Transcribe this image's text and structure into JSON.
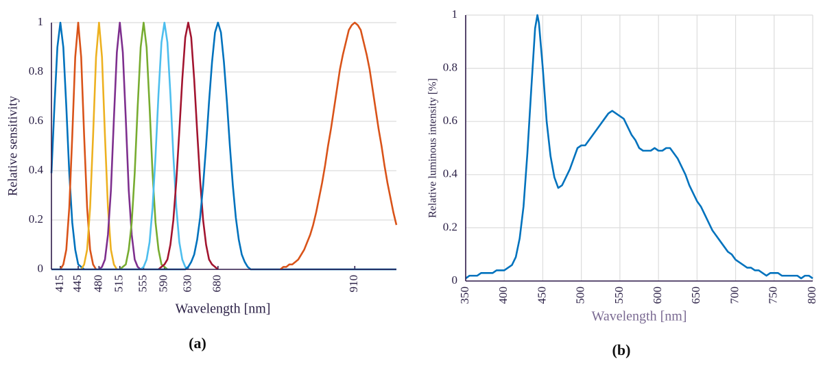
{
  "chart_data": [
    {
      "type": "line",
      "xlabel": "Wavelength [nm]",
      "ylabel": "Relative sensitivity",
      "caption": "(a)",
      "xlim": [
        400,
        980
      ],
      "ylim": [
        0,
        1
      ],
      "xticks": [
        415,
        445,
        480,
        515,
        555,
        590,
        630,
        680,
        910
      ],
      "yticks": [
        0,
        0.2,
        0.4,
        0.6,
        0.8,
        1
      ],
      "grid": [
        "y"
      ],
      "series": [
        {
          "color": "#0072BD",
          "x": [
            400,
            405,
            410,
            415,
            420,
            425,
            430,
            435,
            440,
            445,
            450,
            455
          ],
          "values": [
            0.39,
            0.66,
            0.9,
            1,
            0.9,
            0.66,
            0.39,
            0.19,
            0.08,
            0.02,
            0.01,
            0
          ]
        },
        {
          "color": "#D95319",
          "x": [
            415,
            420,
            425,
            430,
            435,
            440,
            445,
            450,
            455,
            460,
            465,
            470,
            475
          ],
          "values": [
            0,
            0.02,
            0.08,
            0.25,
            0.54,
            0.86,
            1,
            0.86,
            0.54,
            0.25,
            0.08,
            0.02,
            0
          ]
        },
        {
          "color": "#EDB120",
          "x": [
            450,
            455,
            460,
            465,
            470,
            475,
            480,
            485,
            490,
            495,
            500,
            505,
            510
          ],
          "values": [
            0,
            0.02,
            0.08,
            0.25,
            0.54,
            0.86,
            1,
            0.86,
            0.54,
            0.25,
            0.08,
            0.02,
            0
          ]
        },
        {
          "color": "#7E2F8E",
          "x": [
            480,
            485,
            490,
            495,
            500,
            505,
            510,
            515,
            520,
            525,
            530,
            535,
            540,
            545,
            550
          ],
          "values": [
            0,
            0.01,
            0.04,
            0.14,
            0.32,
            0.61,
            0.88,
            1,
            0.88,
            0.61,
            0.32,
            0.14,
            0.04,
            0.01,
            0
          ]
        },
        {
          "color": "#77AC30",
          "x": [
            515,
            520,
            525,
            530,
            535,
            540,
            545,
            550,
            555,
            560,
            565,
            570,
            575,
            580,
            585,
            590,
            595
          ],
          "values": [
            0,
            0.01,
            0.02,
            0.08,
            0.19,
            0.39,
            0.66,
            0.9,
            1,
            0.9,
            0.66,
            0.39,
            0.19,
            0.08,
            0.02,
            0.01,
            0
          ]
        },
        {
          "color": "#4DBEEE",
          "x": [
            550,
            555,
            560,
            565,
            570,
            575,
            580,
            585,
            590,
            595,
            600,
            605,
            610,
            615,
            620,
            625,
            630
          ],
          "values": [
            0,
            0.01,
            0.04,
            0.11,
            0.25,
            0.46,
            0.71,
            0.92,
            1,
            0.92,
            0.71,
            0.46,
            0.25,
            0.11,
            0.04,
            0.01,
            0
          ]
        },
        {
          "color": "#A2142F",
          "x": [
            580,
            585,
            590,
            595,
            600,
            605,
            610,
            615,
            620,
            625,
            630,
            635,
            640,
            645,
            650,
            655,
            660,
            665,
            670,
            675,
            680
          ],
          "values": [
            0,
            0.01,
            0.02,
            0.04,
            0.1,
            0.2,
            0.36,
            0.56,
            0.77,
            0.94,
            1,
            0.94,
            0.77,
            0.56,
            0.36,
            0.2,
            0.1,
            0.04,
            0.02,
            0.01,
            0
          ]
        },
        {
          "color": "#0072BD",
          "x": [
            400,
            625,
            630,
            635,
            640,
            645,
            650,
            655,
            660,
            665,
            670,
            675,
            680,
            685,
            690,
            695,
            700,
            705,
            710,
            715,
            720,
            725,
            730,
            735,
            980
          ],
          "values": [
            0,
            0,
            0.01,
            0.03,
            0.06,
            0.12,
            0.21,
            0.34,
            0.5,
            0.68,
            0.84,
            0.96,
            1,
            0.96,
            0.84,
            0.68,
            0.5,
            0.34,
            0.21,
            0.12,
            0.06,
            0.03,
            0.01,
            0,
            0
          ]
        },
        {
          "color": "#D95319",
          "x": [
            785,
            790,
            795,
            800,
            805,
            810,
            815,
            820,
            825,
            830,
            835,
            840,
            845,
            850,
            855,
            860,
            865,
            870,
            875,
            880,
            885,
            890,
            895,
            900,
            905,
            910,
            915,
            920,
            925,
            930,
            935,
            940,
            945,
            950,
            955,
            960,
            965,
            970,
            975,
            980
          ],
          "values": [
            0,
            0.01,
            0.01,
            0.02,
            0.02,
            0.03,
            0.04,
            0.06,
            0.08,
            0.11,
            0.14,
            0.18,
            0.23,
            0.29,
            0.35,
            0.42,
            0.5,
            0.57,
            0.65,
            0.73,
            0.81,
            0.87,
            0.92,
            0.97,
            0.99,
            1,
            0.99,
            0.97,
            0.92,
            0.87,
            0.81,
            0.73,
            0.65,
            0.57,
            0.5,
            0.42,
            0.35,
            0.29,
            0.23,
            0.18
          ]
        }
      ]
    },
    {
      "type": "line",
      "xlabel": "Wavelength [nm]",
      "ylabel": "Relative luminous intensity [%]",
      "caption": "(b)",
      "xlim": [
        350,
        800
      ],
      "ylim": [
        0,
        1
      ],
      "xticks": [
        350,
        400,
        450,
        500,
        550,
        600,
        650,
        700,
        750,
        800
      ],
      "yticks": [
        0,
        0.2,
        0.4,
        0.6,
        0.8,
        1
      ],
      "grid": [
        "x",
        "y"
      ],
      "x": [
        350,
        355,
        360,
        365,
        370,
        375,
        380,
        385,
        390,
        395,
        400,
        405,
        410,
        415,
        420,
        425,
        430,
        435,
        440,
        443,
        445,
        450,
        455,
        460,
        465,
        470,
        475,
        480,
        485,
        490,
        495,
        500,
        505,
        510,
        515,
        520,
        525,
        530,
        535,
        540,
        545,
        550,
        555,
        560,
        565,
        570,
        575,
        580,
        585,
        590,
        595,
        600,
        605,
        610,
        615,
        620,
        625,
        630,
        635,
        640,
        645,
        650,
        655,
        660,
        665,
        670,
        675,
        680,
        685,
        690,
        695,
        700,
        705,
        710,
        715,
        720,
        725,
        730,
        735,
        740,
        745,
        750,
        755,
        760,
        765,
        770,
        775,
        780,
        785,
        790,
        795,
        800
      ],
      "series": [
        {
          "color": "#0072BD",
          "values": [
            0.01,
            0.02,
            0.02,
            0.02,
            0.03,
            0.03,
            0.03,
            0.03,
            0.04,
            0.04,
            0.04,
            0.05,
            0.06,
            0.09,
            0.16,
            0.28,
            0.48,
            0.72,
            0.95,
            1,
            0.97,
            0.8,
            0.6,
            0.47,
            0.39,
            0.35,
            0.36,
            0.39,
            0.42,
            0.46,
            0.5,
            0.51,
            0.51,
            0.53,
            0.55,
            0.57,
            0.59,
            0.61,
            0.63,
            0.64,
            0.63,
            0.62,
            0.61,
            0.58,
            0.55,
            0.53,
            0.5,
            0.49,
            0.49,
            0.49,
            0.5,
            0.49,
            0.49,
            0.5,
            0.5,
            0.48,
            0.46,
            0.43,
            0.4,
            0.36,
            0.33,
            0.3,
            0.28,
            0.25,
            0.22,
            0.19,
            0.17,
            0.15,
            0.13,
            0.11,
            0.1,
            0.08,
            0.07,
            0.06,
            0.05,
            0.05,
            0.04,
            0.04,
            0.03,
            0.02,
            0.03,
            0.03,
            0.03,
            0.02,
            0.02,
            0.02,
            0.02,
            0.02,
            0.01,
            0.02,
            0.02,
            0.01
          ]
        }
      ]
    }
  ]
}
